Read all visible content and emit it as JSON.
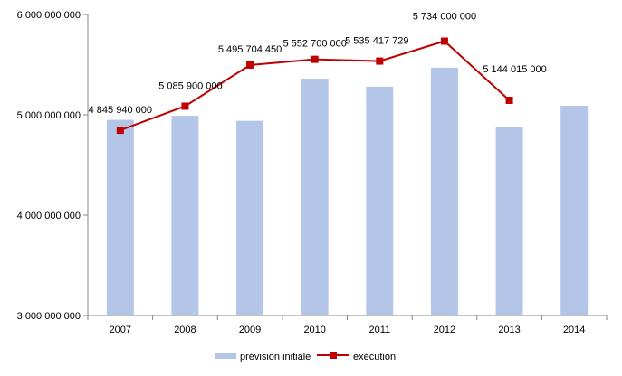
{
  "chart_data": {
    "type": "bar+line",
    "categories": [
      "2007",
      "2008",
      "2009",
      "2010",
      "2011",
      "2012",
      "2013",
      "2014"
    ],
    "ylim": [
      3000000000,
      6000000000
    ],
    "yticks": [
      {
        "value": 3000000000,
        "label": "3 000 000 000"
      },
      {
        "value": 4000000000,
        "label": "4 000 000 000"
      },
      {
        "value": 5000000000,
        "label": "5 000 000 000"
      },
      {
        "value": 6000000000,
        "label": "6 000 000 000"
      }
    ],
    "series": [
      {
        "name": "prévision initiale",
        "type": "bar",
        "color": "#b4c6e7",
        "values": [
          4950000000,
          4990000000,
          4940000000,
          5360000000,
          5280000000,
          5470000000,
          4880000000,
          5090000000
        ]
      },
      {
        "name": "exécution",
        "type": "line",
        "color": "#c00000",
        "values": [
          4845940000,
          5085900000,
          5495704450,
          5552700000,
          5535417729,
          5734000000,
          5144015000,
          null
        ],
        "labels": [
          "4 845 940 000",
          "5 085 900 000",
          "5 495 704 450",
          "5 552 700 000",
          "5 535 417 729",
          "5 734 000 000",
          "5 144 015 000",
          null
        ]
      }
    ],
    "legend": "bottom",
    "grid": false
  }
}
